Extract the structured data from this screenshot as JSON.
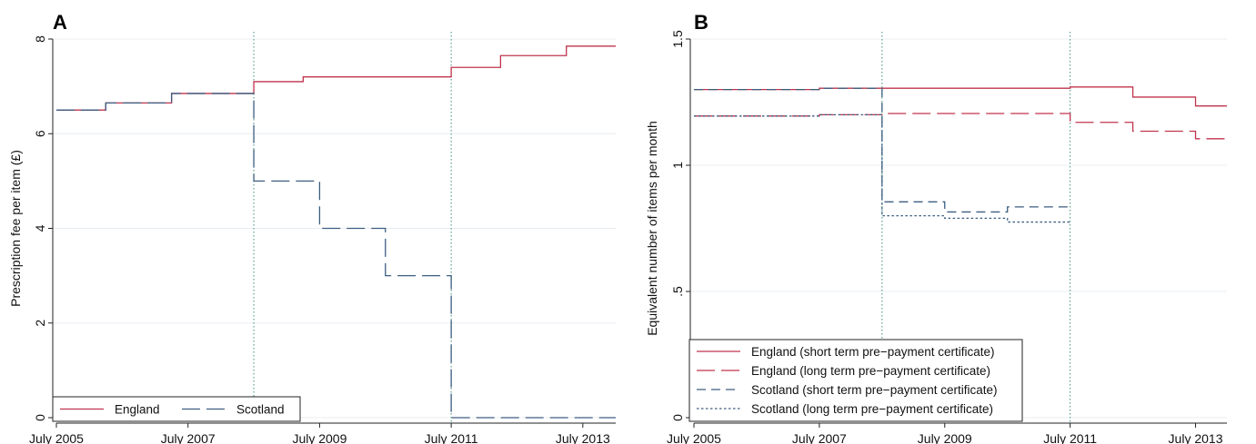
{
  "chart_data": [
    {
      "panel_label": "A",
      "type": "line",
      "step": true,
      "xlabel": "",
      "ylabel": "Prescription fee per item (£)",
      "x_ticks": [
        "July 2005",
        "July 2007",
        "July 2009",
        "July 2011",
        "July 2013"
      ],
      "x_tick_values": [
        2005.5,
        2007.5,
        2009.5,
        2011.5,
        2013.5
      ],
      "y_ticks": [
        "0",
        "2",
        "4",
        "6",
        "8"
      ],
      "y_tick_values": [
        0,
        2,
        4,
        6,
        8
      ],
      "xlim": [
        2005.5,
        2014.0
      ],
      "ylim": [
        0,
        8
      ],
      "grid": true,
      "vlines": [
        2008.5,
        2011.5
      ],
      "legend_position": "bottom-left",
      "series": [
        {
          "name": "England",
          "color": "#c0344d",
          "dash": "solid",
          "points": [
            [
              2005.5,
              6.5
            ],
            [
              2006.25,
              6.65
            ],
            [
              2007.25,
              6.85
            ],
            [
              2008.5,
              7.1
            ],
            [
              2009.25,
              7.2
            ],
            [
              2011.5,
              7.4
            ],
            [
              2012.25,
              7.65
            ],
            [
              2013.25,
              7.85
            ],
            [
              2014.0,
              7.85
            ]
          ]
        },
        {
          "name": "Scotland",
          "color": "#3c5e80",
          "dash": "longdash",
          "points": [
            [
              2005.5,
              6.5
            ],
            [
              2006.25,
              6.65
            ],
            [
              2007.25,
              6.85
            ],
            [
              2008.5,
              5.0
            ],
            [
              2009.5,
              4.0
            ],
            [
              2010.5,
              3.0
            ],
            [
              2011.5,
              0.0
            ],
            [
              2014.0,
              0.0
            ]
          ]
        }
      ]
    },
    {
      "panel_label": "B",
      "type": "line",
      "step": true,
      "xlabel": "",
      "ylabel": "Equivalent number of items per month",
      "x_ticks": [
        "July 2005",
        "July 2007",
        "July 2009",
        "July 2011",
        "July 2013"
      ],
      "x_tick_values": [
        2005.5,
        2007.5,
        2009.5,
        2011.5,
        2013.5
      ],
      "y_ticks": [
        "0",
        ".5",
        "1",
        "1.5"
      ],
      "y_tick_values": [
        0,
        0.5,
        1,
        1.5
      ],
      "xlim": [
        2005.5,
        2014.0
      ],
      "ylim": [
        0,
        1.5
      ],
      "grid": true,
      "vlines": [
        2008.5,
        2011.5
      ],
      "legend_position": "bottom-left",
      "series": [
        {
          "name": "England (short term pre−payment certificate)",
          "color": "#c0344d",
          "dash": "solid",
          "points": [
            [
              2005.5,
              1.3
            ],
            [
              2007.5,
              1.305
            ],
            [
              2008.5,
              1.305
            ],
            [
              2011.5,
              1.31
            ],
            [
              2012.5,
              1.27
            ],
            [
              2013.5,
              1.235
            ],
            [
              2014.0,
              1.235
            ]
          ]
        },
        {
          "name": "England (long term pre−payment certificate)",
          "color": "#c0344d",
          "dash": "longdash",
          "points": [
            [
              2005.5,
              1.195
            ],
            [
              2007.5,
              1.2
            ],
            [
              2008.5,
              1.205
            ],
            [
              2011.5,
              1.17
            ],
            [
              2012.5,
              1.135
            ],
            [
              2013.5,
              1.105
            ],
            [
              2014.0,
              1.105
            ]
          ]
        },
        {
          "name": "Scotland (short term pre−payment certificate)",
          "color": "#3c5e80",
          "dash": "dash",
          "points": [
            [
              2005.5,
              1.3
            ],
            [
              2007.5,
              1.305
            ],
            [
              2008.5,
              0.855
            ],
            [
              2009.5,
              0.815
            ],
            [
              2010.5,
              0.835
            ],
            [
              2011.5,
              0.835
            ]
          ]
        },
        {
          "name": "Scotland (long term pre−payment certificate)",
          "color": "#3c5e80",
          "dash": "dot",
          "points": [
            [
              2005.5,
              1.195
            ],
            [
              2007.5,
              1.2
            ],
            [
              2008.5,
              0.8
            ],
            [
              2009.5,
              0.79
            ],
            [
              2010.5,
              0.775
            ],
            [
              2011.5,
              0.775
            ]
          ]
        }
      ]
    }
  ]
}
